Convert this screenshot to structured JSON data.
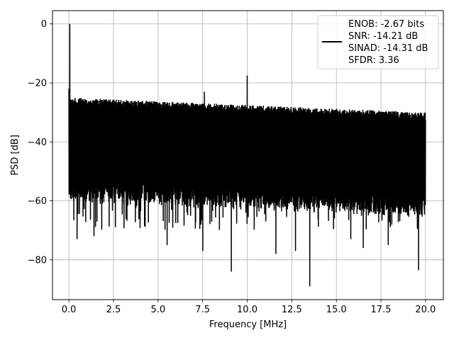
{
  "chart_data": {
    "type": "line",
    "title": "",
    "xlabel": "Frequency [MHz]",
    "ylabel": "PSD [dB]",
    "xlim": [
      -0.92,
      21.0
    ],
    "ylim": [
      -93.5,
      4.5
    ],
    "xticks": [
      0.0,
      2.5,
      5.0,
      7.5,
      10.0,
      12.5,
      15.0,
      17.5,
      20.0
    ],
    "xtick_labels": [
      "0.0",
      "2.5",
      "5.0",
      "7.5",
      "10.0",
      "12.5",
      "15.0",
      "17.5",
      "20.0"
    ],
    "yticks": [
      0,
      -20,
      -40,
      -60,
      -80
    ],
    "ytick_labels": [
      "0",
      "−20",
      "−40",
      "−60",
      "−80"
    ],
    "grid": true,
    "legend_position": "top-right",
    "series": [
      {
        "name": "",
        "color": "#000000",
        "legend_lines": [
          "ENOB: -2.67 bits",
          "SNR: -14.21 dB",
          "SINAD: -14.31 dB",
          "SFDR: 3.36"
        ],
        "x_range": [
          0.0,
          20.0
        ],
        "noise_band_top_start": -25,
        "noise_band_top_end": -30,
        "noise_band_bottom_start": -55,
        "noise_band_bottom_end": -60,
        "peaks": [
          {
            "x": 0.05,
            "y": 0
          },
          {
            "x": 10.0,
            "y": -17.5
          },
          {
            "x": 7.6,
            "y": -23
          }
        ],
        "deep_minima": [
          {
            "x": 0.45,
            "y": -73
          },
          {
            "x": 1.4,
            "y": -72
          },
          {
            "x": 5.5,
            "y": -75
          },
          {
            "x": 7.5,
            "y": -77
          },
          {
            "x": 9.1,
            "y": -84
          },
          {
            "x": 11.6,
            "y": -78
          },
          {
            "x": 12.7,
            "y": -77
          },
          {
            "x": 13.5,
            "y": -89
          },
          {
            "x": 15.8,
            "y": -73
          },
          {
            "x": 16.5,
            "y": -76
          },
          {
            "x": 17.9,
            "y": -75
          },
          {
            "x": 19.6,
            "y": -83.5
          }
        ]
      }
    ]
  }
}
